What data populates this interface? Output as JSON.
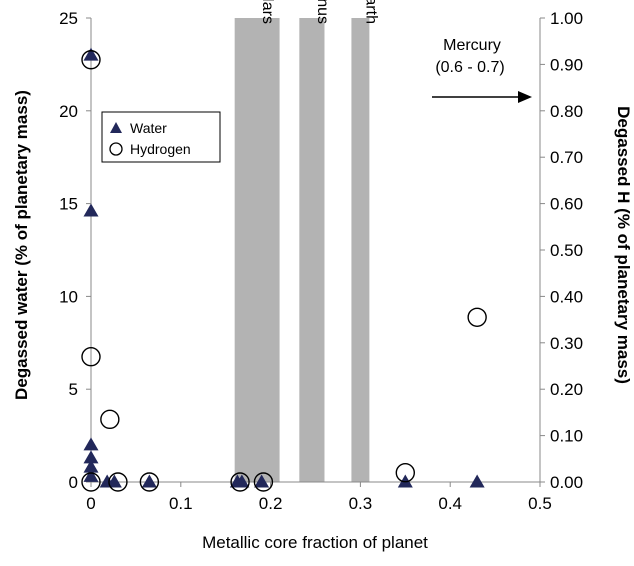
{
  "chart_data": {
    "type": "scatter",
    "xlabel": "Metallic core fraction of planet",
    "ylabel": "Degassed water (% of planetary mass)",
    "y2label": "Degassed H (% of planetary mass)",
    "xlim": [
      0,
      0.5
    ],
    "ylim": [
      0,
      25
    ],
    "y2lim": [
      0,
      1.0
    ],
    "x_ticks": [
      0,
      0.1,
      0.2,
      0.3,
      0.4,
      0.5
    ],
    "x_tick_labels": [
      "0",
      "0.1",
      "0.2",
      "0.3",
      "0.4",
      "0.5"
    ],
    "y_ticks": [
      0,
      5,
      10,
      15,
      20,
      25
    ],
    "y_tick_labels": [
      "0",
      "5",
      "10",
      "15",
      "20",
      "25"
    ],
    "y2_ticks": [
      0,
      0.1,
      0.2,
      0.3,
      0.4,
      0.5,
      0.6,
      0.7,
      0.8,
      0.9,
      1.0
    ],
    "y2_tick_labels": [
      "0.00",
      "0.10",
      "0.20",
      "0.30",
      "0.40",
      "0.50",
      "0.60",
      "0.70",
      "0.80",
      "0.90",
      "1.00"
    ],
    "grid": false,
    "legend_position": "upper-left",
    "bands": [
      {
        "label": "Mars",
        "x0": 0.16,
        "x1": 0.21
      },
      {
        "label": "Venus",
        "x0": 0.232,
        "x1": 0.26
      },
      {
        "label": "Earth",
        "x0": 0.29,
        "x1": 0.31
      }
    ],
    "annotation": {
      "lines": [
        "Mercury",
        "(0.6 - 0.7)"
      ],
      "arrow": "right"
    },
    "series": [
      {
        "name": "Water",
        "axis": "left",
        "marker": "triangle",
        "color": "#22285a",
        "points": [
          [
            0,
            23.0
          ],
          [
            0,
            14.6
          ],
          [
            0,
            2.0
          ],
          [
            0,
            1.3
          ],
          [
            0,
            0.8
          ],
          [
            0,
            0.3
          ],
          [
            0.018,
            0
          ],
          [
            0.026,
            0
          ],
          [
            0.065,
            0
          ],
          [
            0.163,
            0
          ],
          [
            0.168,
            0
          ],
          [
            0.19,
            0
          ],
          [
            0.35,
            0
          ],
          [
            0.43,
            0
          ]
        ]
      },
      {
        "name": "Hydrogen",
        "axis": "right",
        "marker": "circle",
        "color": "#000000",
        "points": [
          [
            0,
            0.91
          ],
          [
            0,
            0.27
          ],
          [
            0.021,
            0.135
          ],
          [
            0,
            0
          ],
          [
            0.03,
            0
          ],
          [
            0.065,
            0
          ],
          [
            0.166,
            0
          ],
          [
            0.192,
            0
          ],
          [
            0.35,
            0.02
          ],
          [
            0.43,
            0.355
          ]
        ]
      }
    ]
  }
}
